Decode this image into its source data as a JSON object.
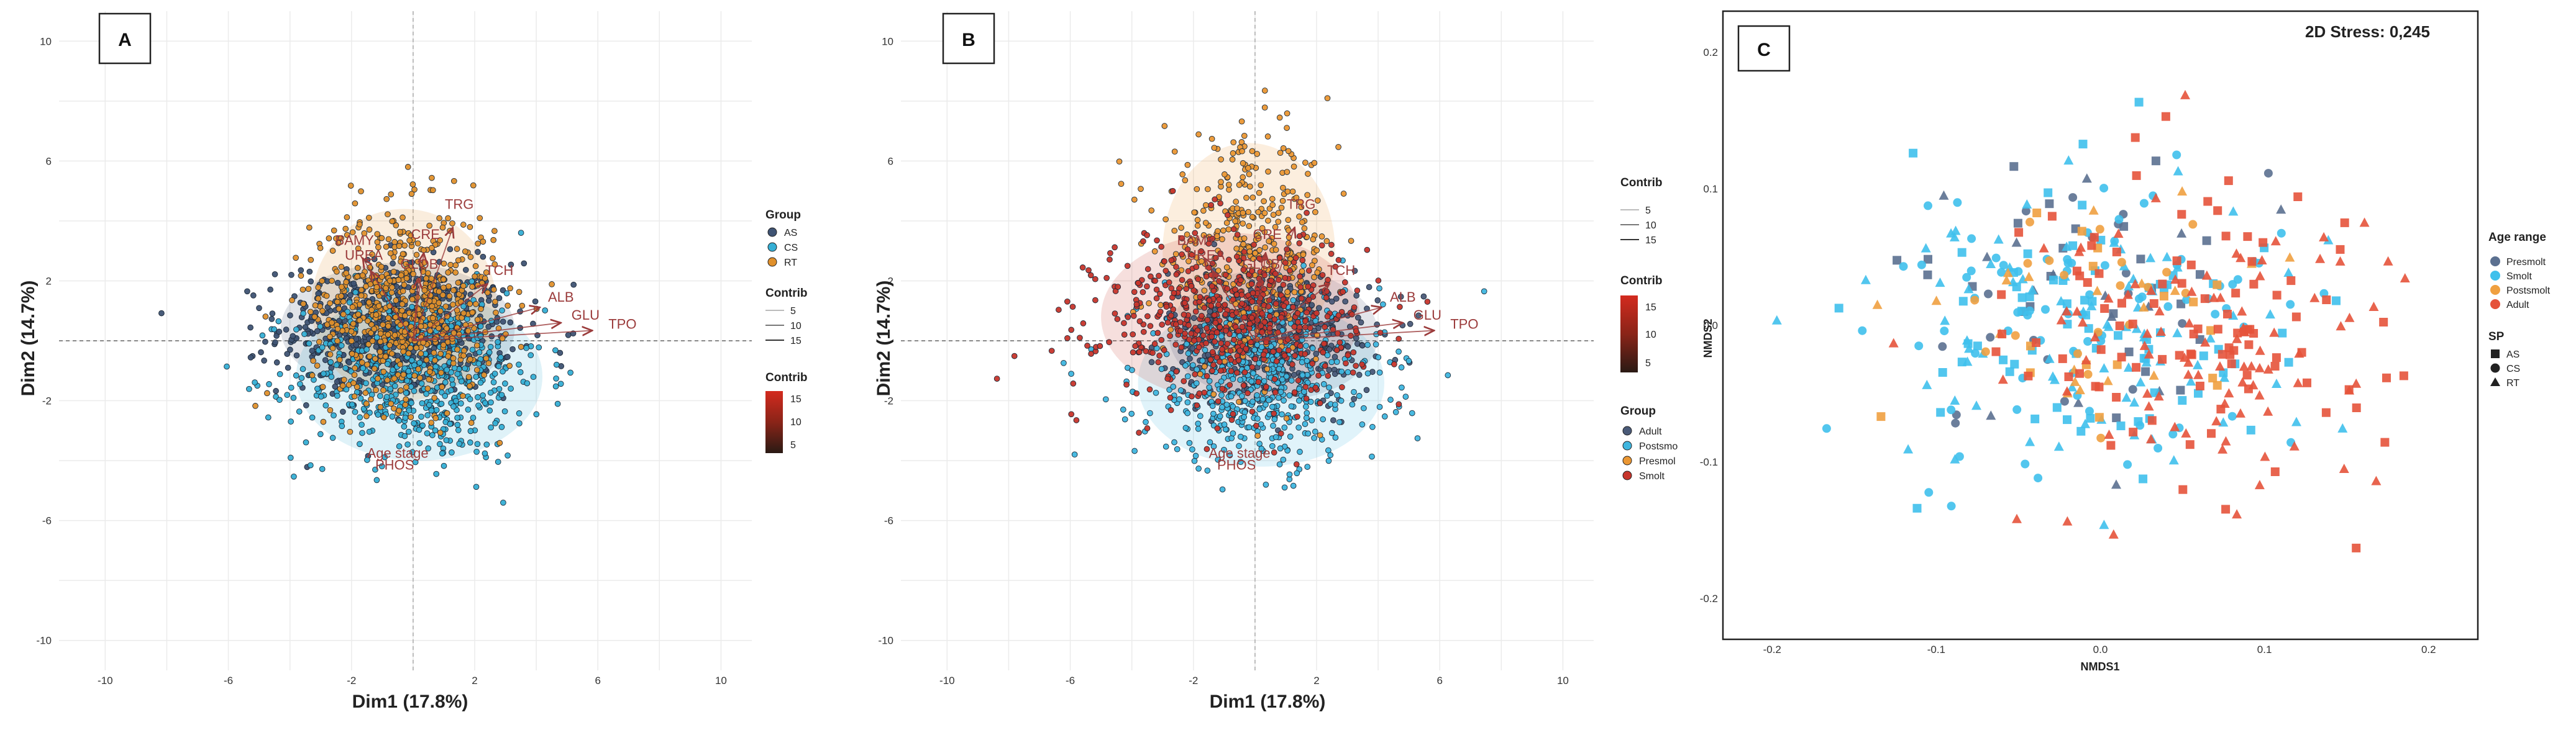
{
  "colors": {
    "as": "#3f5373",
    "cs": "#35afd5",
    "rt": "#e0902b",
    "adult": "#4a5a78",
    "postsmolt": "#3fb6df",
    "presmolt": "#eb9733",
    "smolt": "#c7352b",
    "nm_presmolt": "#5b7090",
    "nm_smolt": "#3fc0ec",
    "nm_postsmolt": "#f0a040",
    "nm_adult": "#e5533b"
  },
  "chart_data": [
    {
      "type": "scatter",
      "panel": "A",
      "xlabel": "Dim1 (17.8%)",
      "ylabel": "Dim2 (14.7%)",
      "xlim": [
        -11.5,
        11
      ],
      "ylim": [
        -11,
        11
      ],
      "xticks": [
        "-10",
        "-6",
        "-2",
        "2",
        "6",
        "10"
      ],
      "yticks": [
        "10",
        "6",
        "2",
        "-2",
        "-6",
        "-10"
      ],
      "grid": true,
      "groups": [
        {
          "name": "AS",
          "center": [
            -0.5,
            0.4
          ],
          "spread": [
            1.9,
            1.1
          ],
          "color_key": "as"
        },
        {
          "name": "CS",
          "center": [
            0.2,
            -1.2
          ],
          "spread": [
            2.0,
            1.4
          ],
          "color_key": "cs"
        },
        {
          "name": "RT",
          "center": [
            -0.3,
            1.2
          ],
          "spread": [
            1.5,
            1.6
          ],
          "color_key": "rt"
        }
      ],
      "variables": [
        {
          "name": "TRG",
          "x": 1.5,
          "y": 4.4
        },
        {
          "name": "CRE",
          "x": 0.4,
          "y": 3.4
        },
        {
          "name": "BAMY",
          "x": -1.9,
          "y": 3.2
        },
        {
          "name": "UREA",
          "x": -1.6,
          "y": 2.7
        },
        {
          "name": "GLOB",
          "x": 0.2,
          "y": 2.4
        },
        {
          "name": "TCH",
          "x": 2.8,
          "y": 2.2
        },
        {
          "name": "ALB",
          "x": 4.8,
          "y": 1.3
        },
        {
          "name": "GLU",
          "x": 5.6,
          "y": 0.7
        },
        {
          "name": "TPO",
          "x": 6.8,
          "y": 0.4
        },
        {
          "name": "Age stage",
          "x": -0.5,
          "y": -3.9
        },
        {
          "name": "PHOS",
          "x": -0.6,
          "y": -4.3
        }
      ],
      "legend": {
        "group_title": "Group",
        "group_labels": [
          "AS",
          "CS",
          "RT"
        ],
        "contrib_title": "Contrib",
        "contrib_values": [
          "5",
          "10",
          "15"
        ],
        "colorbar_title": "Contrib",
        "colorbar_ticks": [
          "15",
          "10",
          "5"
        ]
      }
    },
    {
      "type": "scatter",
      "panel": "B",
      "xlabel": "Dim1 (17.8%)",
      "ylabel": "Dim2 (14.7%)",
      "xlim": [
        -11.5,
        11
      ],
      "ylim": [
        -11,
        11
      ],
      "xticks": [
        "-10",
        "-6",
        "-2",
        "2",
        "6",
        "10"
      ],
      "yticks": [
        "10",
        "6",
        "2",
        "-2",
        "-6",
        "-10"
      ],
      "grid": true,
      "groups": [
        {
          "name": "Adult",
          "center": [
            0.6,
            0.2
          ],
          "spread": [
            1.7,
            1.1
          ],
          "color_key": "adult"
        },
        {
          "name": "Postsmolt",
          "center": [
            0.2,
            -1.4
          ],
          "spread": [
            2.0,
            1.4
          ],
          "color_key": "postsmolt"
        },
        {
          "name": "Presmolt",
          "center": [
            -0.2,
            3.0
          ],
          "spread": [
            1.4,
            1.8
          ],
          "color_key": "presmolt"
        },
        {
          "name": "Smolt",
          "center": [
            -0.8,
            0.8
          ],
          "spread": [
            2.1,
            1.4
          ],
          "color_key": "smolt"
        }
      ],
      "variables": [
        {
          "name": "TRG",
          "x": 1.5,
          "y": 4.4
        },
        {
          "name": "CRE",
          "x": 0.4,
          "y": 3.4
        },
        {
          "name": "BAMY",
          "x": -1.9,
          "y": 3.2
        },
        {
          "name": "UREA",
          "x": -1.6,
          "y": 2.7
        },
        {
          "name": "GLOB",
          "x": 0.2,
          "y": 2.4
        },
        {
          "name": "TCH",
          "x": 2.8,
          "y": 2.2
        },
        {
          "name": "ALB",
          "x": 4.8,
          "y": 1.3
        },
        {
          "name": "GLU",
          "x": 5.6,
          "y": 0.7
        },
        {
          "name": "TPO",
          "x": 6.8,
          "y": 0.4
        },
        {
          "name": "Age stage",
          "x": -0.5,
          "y": -3.9
        },
        {
          "name": "PHOS",
          "x": -0.6,
          "y": -4.3
        }
      ],
      "legend": {
        "contrib_title": "Contrib",
        "contrib_values": [
          "5",
          "10",
          "15"
        ],
        "colorbar_title": "Contrib",
        "colorbar_ticks": [
          "15",
          "10",
          "5"
        ],
        "group_title": "Group",
        "group_labels": [
          "Adult",
          "Postsmo",
          "Presmol",
          "Smolt"
        ]
      }
    },
    {
      "type": "scatter",
      "panel": "C",
      "title": "2D Stress: 0,245",
      "xlabel": "NMDS1",
      "ylabel": "NMDS2",
      "xlim": [
        -0.23,
        0.23
      ],
      "ylim": [
        -0.23,
        0.23
      ],
      "xticks": [
        "-0.2",
        "-0.1",
        "0.0",
        "0.1",
        "0.2"
      ],
      "yticks": [
        "0.2",
        "0.1",
        "0.0",
        "-0.1",
        "-0.2"
      ],
      "grid": false,
      "groups": [
        {
          "name": "Presmolt",
          "center": [
            -0.01,
            0.03
          ],
          "spread": [
            0.055,
            0.05
          ],
          "color_key": "nm_presmolt"
        },
        {
          "name": "Smolt",
          "center": [
            -0.01,
            0.0
          ],
          "spread": [
            0.06,
            0.05
          ],
          "color_key": "nm_smolt"
        },
        {
          "name": "Postsmolt",
          "center": [
            0.0,
            0.01
          ],
          "spread": [
            0.06,
            0.045
          ],
          "color_key": "nm_postsmolt"
        },
        {
          "name": "Adult",
          "center": [
            0.06,
            0.0
          ],
          "spread": [
            0.06,
            0.055
          ],
          "color_key": "nm_adult"
        }
      ],
      "legend": {
        "age_title": "Age range",
        "age_labels": [
          "Presmolt",
          "Smolt",
          "Postsmolt",
          "Adult"
        ],
        "sp_title": "SP",
        "sp_labels": [
          "AS",
          "CS",
          "RT"
        ],
        "sp_symbols": [
          "square",
          "circle",
          "triangle"
        ]
      }
    }
  ]
}
